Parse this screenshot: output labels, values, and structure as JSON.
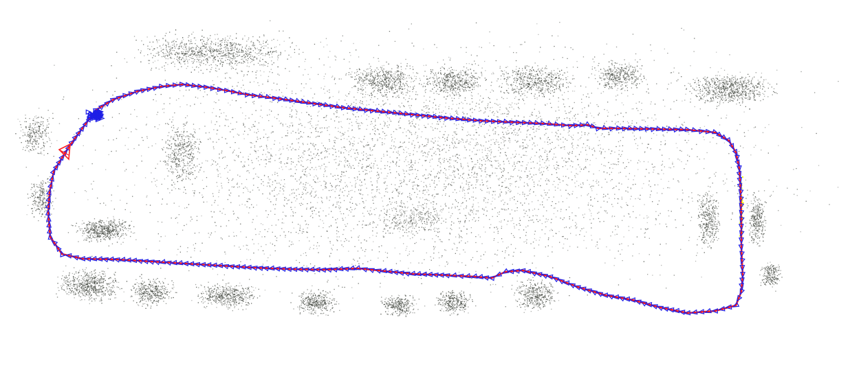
{
  "scene": {
    "kind": "slam-point-cloud-top-view",
    "background_color": "#ffffff",
    "point_color": "#5f625c",
    "point_color_dark": "#3a3f37",
    "trajectory_color": "#ff1a1a",
    "keyframe_color": "#1e1ee6",
    "current_camera_color": "#ff2020",
    "highlight_color": "#ffff00"
  },
  "legend_items": []
}
